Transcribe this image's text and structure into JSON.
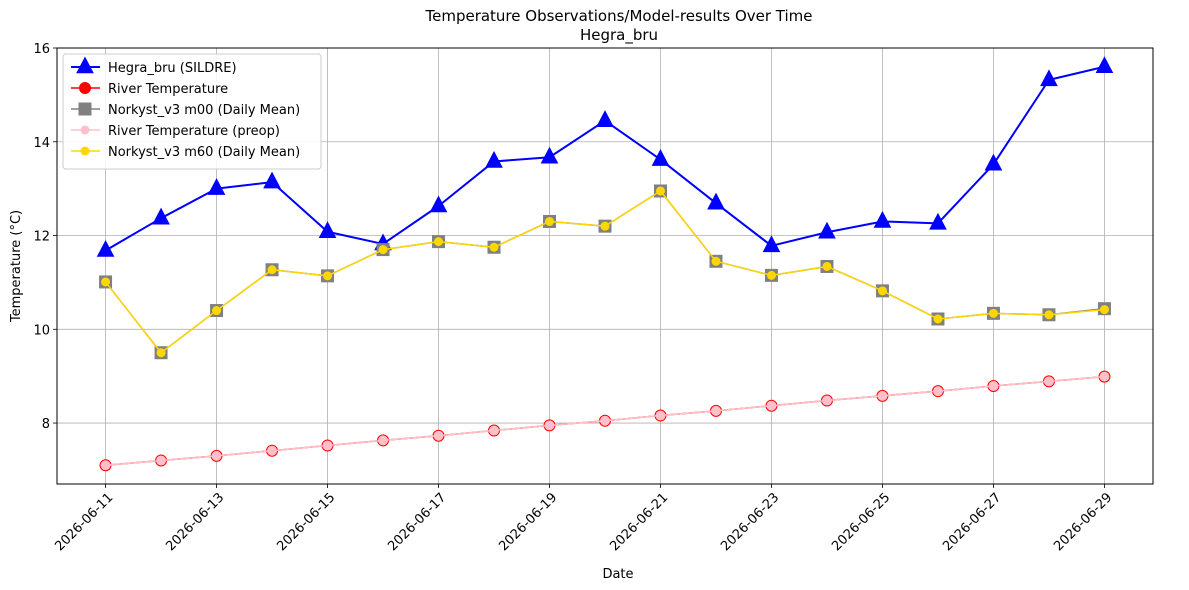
{
  "chart_data": {
    "type": "line",
    "title": "Temperature Observations/Model-results Over Time",
    "subtitle": "Hegra_bru",
    "xlabel": "Date",
    "ylabel": "Temperature (°C)",
    "xlim": [
      "2026-06-10T03:00",
      "2026-06-29T21:00"
    ],
    "ylim": [
      6.7,
      16.0
    ],
    "grid": true,
    "legend_position": "top-left",
    "x_ticks": [
      "2026-06-11",
      "2026-06-13",
      "2026-06-15",
      "2026-06-17",
      "2026-06-19",
      "2026-06-21",
      "2026-06-23",
      "2026-06-25",
      "2026-06-27",
      "2026-06-29"
    ],
    "y_ticks": [
      8,
      10,
      12,
      14,
      16
    ],
    "x": [
      "2026-06-11",
      "2026-06-12",
      "2026-06-13",
      "2026-06-14",
      "2026-06-15",
      "2026-06-16",
      "2026-06-17",
      "2026-06-18",
      "2026-06-19",
      "2026-06-20",
      "2026-06-21",
      "2026-06-22",
      "2026-06-23",
      "2026-06-24",
      "2026-06-25",
      "2026-06-26",
      "2026-06-27",
      "2026-06-28",
      "2026-06-29"
    ],
    "series": [
      {
        "name": "Hegra_bru (SILDRE)",
        "color": "#0000ff",
        "marker": "triangle",
        "values": [
          11.68,
          12.37,
          13.0,
          13.14,
          12.08,
          11.82,
          12.63,
          13.58,
          13.67,
          14.45,
          13.62,
          12.69,
          11.78,
          12.07,
          12.3,
          12.26,
          13.52,
          15.32,
          15.6
        ]
      },
      {
        "name": "River Temperature",
        "color": "#ff0000",
        "marker": "circle",
        "values": [
          7.1,
          7.2,
          7.3,
          7.41,
          7.52,
          7.63,
          7.73,
          7.84,
          7.95,
          8.05,
          8.16,
          8.26,
          8.37,
          8.48,
          8.58,
          8.68,
          8.79,
          8.89,
          8.99
        ]
      },
      {
        "name": "Norkyst_v3 m00 (Daily Mean)",
        "color": "#808080",
        "marker": "square",
        "values": [
          11.01,
          9.5,
          10.4,
          11.27,
          11.14,
          11.7,
          11.87,
          11.75,
          12.3,
          12.2,
          12.95,
          11.45,
          11.15,
          11.34,
          10.82,
          10.22,
          10.34,
          10.31,
          10.44
        ]
      },
      {
        "name": "River Temperature (preop)",
        "color": "#ffc0cb",
        "marker": "circle",
        "values": [
          7.1,
          7.2,
          7.3,
          7.41,
          7.52,
          7.63,
          7.73,
          7.84,
          7.95,
          8.05,
          8.16,
          8.26,
          8.37,
          8.48,
          8.58,
          8.68,
          8.79,
          8.89,
          8.99
        ]
      },
      {
        "name": "Norkyst_v3 m60 (Daily Mean)",
        "color": "#ffd700",
        "marker": "circle",
        "values": [
          11.01,
          9.5,
          10.4,
          11.27,
          11.14,
          11.7,
          11.87,
          11.75,
          12.3,
          12.2,
          12.95,
          11.45,
          11.15,
          11.34,
          10.82,
          10.22,
          10.34,
          10.31,
          10.42
        ]
      }
    ]
  }
}
